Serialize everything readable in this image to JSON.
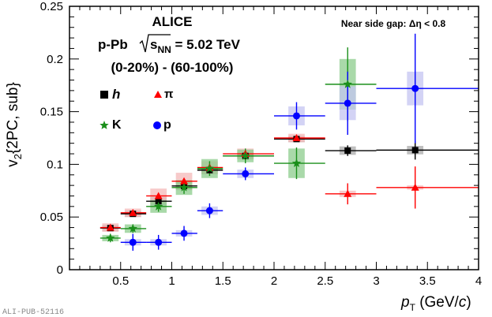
{
  "chart_data": {
    "type": "scatter",
    "title": "ALICE",
    "system_label": "p-Pb",
    "energy_sqrt": "s",
    "energy_sub": "NN",
    "energy_value": " = 5.02 TeV",
    "centrality": "(0-20%) - (60-100%)",
    "gap_label": "Near side gap: Δη < 0.8",
    "xlabel_main": "p",
    "xlabel_sub": "T",
    "xlabel_unit_open": " (GeV/",
    "xlabel_unit_c": "c",
    "xlabel_unit_close": ")",
    "ylabel_main": "v",
    "ylabel_sub": "2",
    "ylabel_rest": "{2PC, sub}",
    "xlim": [
      0,
      4
    ],
    "ylim": [
      0,
      0.25
    ],
    "x_ticks": [
      0.5,
      1,
      1.5,
      2,
      2.5,
      3,
      3.5,
      4
    ],
    "x_tick_labels": [
      "0.5",
      "1",
      "1.5",
      "2",
      "2.5",
      "3",
      "3.5",
      "4"
    ],
    "y_ticks": [
      0,
      0.05,
      0.1,
      0.15,
      0.2,
      0.25
    ],
    "y_tick_labels": [
      "0",
      "0.05",
      "0.1",
      "0.15",
      "0.2",
      "0.25"
    ],
    "publication_id": "ALI-PUB-52116",
    "series": [
      {
        "name": "h",
        "marker": "square",
        "color": "#000000",
        "sys_color": "#aaaaaa",
        "points": [
          {
            "x": 0.4,
            "y": 0.0395,
            "xlo": 0.3,
            "xhi": 0.5,
            "err": 0.002,
            "sys": 0.003
          },
          {
            "x": 0.62,
            "y": 0.053,
            "xlo": 0.5,
            "xhi": 0.75,
            "err": 0.002,
            "sys": 0.003
          },
          {
            "x": 0.87,
            "y": 0.065,
            "xlo": 0.75,
            "xhi": 1.0,
            "err": 0.002,
            "sys": 0.004
          },
          {
            "x": 1.12,
            "y": 0.0795,
            "xlo": 1.0,
            "xhi": 1.25,
            "err": 0.002,
            "sys": 0.004
          },
          {
            "x": 1.37,
            "y": 0.0945,
            "xlo": 1.25,
            "xhi": 1.5,
            "err": 0.002,
            "sys": 0.004
          },
          {
            "x": 1.72,
            "y": 0.108,
            "xlo": 1.5,
            "xhi": 2.0,
            "err": 0.002,
            "sys": 0.003
          },
          {
            "x": 2.22,
            "y": 0.124,
            "xlo": 2.0,
            "xhi": 2.5,
            "err": 0.002,
            "sys": 0.003
          },
          {
            "x": 2.72,
            "y": 0.113,
            "xlo": 2.5,
            "xhi": 3.0,
            "err": 0.005,
            "sys": 0.004
          },
          {
            "x": 3.38,
            "y": 0.1135,
            "xlo": 3.0,
            "xhi": 4.0,
            "err": 0.009,
            "sys": 0.004
          }
        ]
      },
      {
        "name": "π",
        "marker": "triangle",
        "color": "#ff0000",
        "sys_color": "#f4b8b8",
        "points": [
          {
            "x": 0.4,
            "y": 0.04,
            "xlo": 0.3,
            "xhi": 0.5,
            "err": 0.002,
            "sys": 0.004
          },
          {
            "x": 0.62,
            "y": 0.054,
            "xlo": 0.5,
            "xhi": 0.75,
            "err": 0.002,
            "sys": 0.004
          },
          {
            "x": 0.87,
            "y": 0.07,
            "xlo": 0.75,
            "xhi": 1.0,
            "err": 0.002,
            "sys": 0.007
          },
          {
            "x": 1.12,
            "y": 0.084,
            "xlo": 1.0,
            "xhi": 1.25,
            "err": 0.002,
            "sys": 0.008
          },
          {
            "x": 1.37,
            "y": 0.097,
            "xlo": 1.25,
            "xhi": 1.5,
            "err": 0.003,
            "sys": 0.006
          },
          {
            "x": 1.72,
            "y": 0.11,
            "xlo": 1.5,
            "xhi": 2.0,
            "err": 0.003,
            "sys": 0.005
          },
          {
            "x": 2.22,
            "y": 0.125,
            "xlo": 2.0,
            "xhi": 2.5,
            "err": 0.003,
            "sys": 0.004
          },
          {
            "x": 2.72,
            "y": 0.072,
            "xlo": 2.5,
            "xhi": 3.0,
            "err": 0.01,
            "sys": 0.003
          },
          {
            "x": 3.38,
            "y": 0.078,
            "xlo": 3.0,
            "xhi": 4.0,
            "err": 0.02,
            "sys": 0.002
          }
        ]
      },
      {
        "name": "K",
        "marker": "star",
        "color": "#1a8f1a",
        "sys_color": "#8ccc8c",
        "points": [
          {
            "x": 0.4,
            "y": 0.03,
            "xlo": 0.3,
            "xhi": 0.5,
            "err": 0.004,
            "sys": 0.003
          },
          {
            "x": 0.62,
            "y": 0.039,
            "xlo": 0.5,
            "xhi": 0.75,
            "err": 0.004,
            "sys": 0.004
          },
          {
            "x": 0.87,
            "y": 0.06,
            "xlo": 0.75,
            "xhi": 1.0,
            "err": 0.005,
            "sys": 0.006
          },
          {
            "x": 1.12,
            "y": 0.078,
            "xlo": 1.0,
            "xhi": 1.25,
            "err": 0.006,
            "sys": 0.007
          },
          {
            "x": 1.37,
            "y": 0.096,
            "xlo": 1.25,
            "xhi": 1.5,
            "err": 0.007,
            "sys": 0.009
          },
          {
            "x": 1.72,
            "y": 0.108,
            "xlo": 1.5,
            "xhi": 2.0,
            "err": 0.007,
            "sys": 0.006
          },
          {
            "x": 2.22,
            "y": 0.101,
            "xlo": 2.0,
            "xhi": 2.5,
            "err": 0.015,
            "sys": 0.014
          },
          {
            "x": 2.72,
            "y": 0.176,
            "xlo": 2.5,
            "xhi": 3.0,
            "err": 0.035,
            "sys": 0.024
          }
        ]
      },
      {
        "name": "p",
        "marker": "circle",
        "color": "#0000ff",
        "sys_color": "#c4c4f2",
        "points": [
          {
            "x": 0.62,
            "y": 0.026,
            "xlo": 0.5,
            "xhi": 0.75,
            "err": 0.008,
            "sys": 0.003
          },
          {
            "x": 0.87,
            "y": 0.026,
            "xlo": 0.75,
            "xhi": 1.0,
            "err": 0.007,
            "sys": 0.003
          },
          {
            "x": 1.12,
            "y": 0.0345,
            "xlo": 1.0,
            "xhi": 1.25,
            "err": 0.007,
            "sys": 0.003
          },
          {
            "x": 1.37,
            "y": 0.056,
            "xlo": 1.25,
            "xhi": 1.5,
            "err": 0.007,
            "sys": 0.004
          },
          {
            "x": 1.72,
            "y": 0.091,
            "xlo": 1.5,
            "xhi": 2.0,
            "err": 0.006,
            "sys": 0.004
          },
          {
            "x": 2.22,
            "y": 0.146,
            "xlo": 2.0,
            "xhi": 2.5,
            "err": 0.013,
            "sys": 0.009
          },
          {
            "x": 2.72,
            "y": 0.158,
            "xlo": 2.5,
            "xhi": 3.0,
            "err": 0.03,
            "sys": 0.016
          },
          {
            "x": 3.38,
            "y": 0.172,
            "xlo": 3.0,
            "xhi": 4.0,
            "err": 0.052,
            "sys": 0.016
          }
        ]
      }
    ]
  }
}
